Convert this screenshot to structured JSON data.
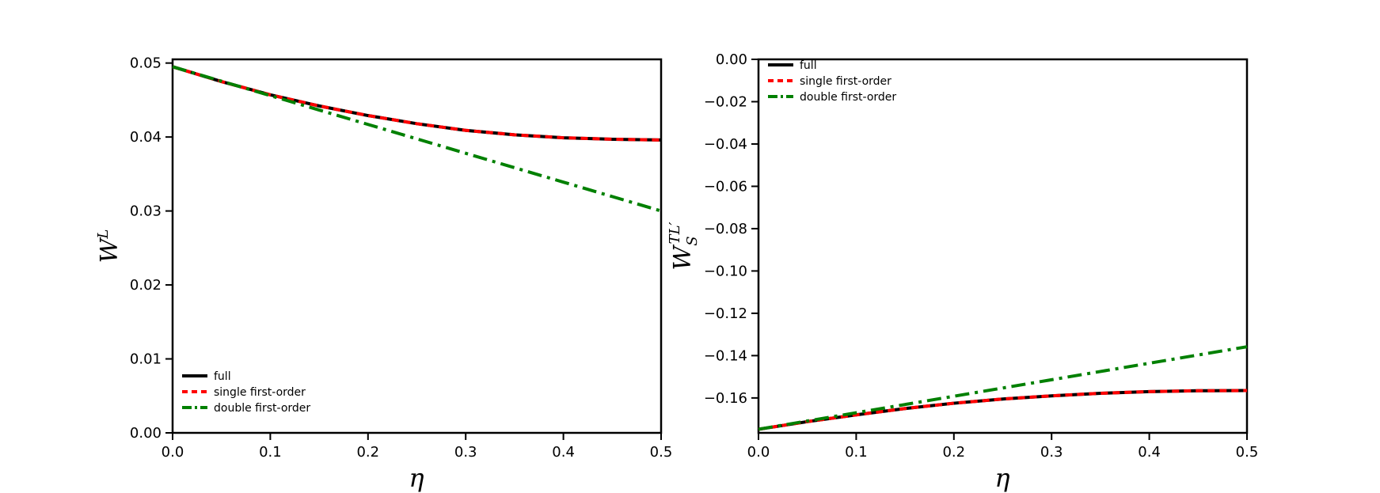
{
  "chart_data": [
    {
      "type": "line",
      "xlabel": "η",
      "ylabel_base": "W",
      "ylabel_sup": "L",
      "ylabel_sub": "",
      "xlim": [
        0.0,
        0.5
      ],
      "ylim": [
        0.0,
        0.0505
      ],
      "xticks": [
        0.0,
        0.1,
        0.2,
        0.3,
        0.4,
        0.5
      ],
      "xtick_labels": [
        "0.0",
        "0.1",
        "0.2",
        "0.3",
        "0.4",
        "0.5"
      ],
      "yticks": [
        0.0,
        0.01,
        0.02,
        0.03,
        0.04,
        0.05
      ],
      "ytick_labels": [
        "0.00",
        "0.01",
        "0.02",
        "0.03",
        "0.04",
        "0.05"
      ],
      "grid": false,
      "legend_position": "lower-left",
      "x": [
        0.0,
        0.05,
        0.1,
        0.15,
        0.2,
        0.25,
        0.3,
        0.35,
        0.4,
        0.45,
        0.5
      ],
      "series": [
        {
          "name": "full",
          "color": "#000000",
          "style": "solid",
          "values": [
            0.0495,
            0.0475,
            0.0457,
            0.0442,
            0.0429,
            0.0418,
            0.0409,
            0.0403,
            0.0399,
            0.0397,
            0.0396
          ]
        },
        {
          "name": "single first-order",
          "color": "#ff0000",
          "style": "dashed",
          "values": [
            0.0495,
            0.0475,
            0.0457,
            0.0442,
            0.0429,
            0.0418,
            0.0409,
            0.0403,
            0.0399,
            0.0397,
            0.0396
          ]
        },
        {
          "name": "double first-order",
          "color": "#008000",
          "style": "dashdot",
          "values": [
            0.0495,
            0.04755,
            0.0456,
            0.04365,
            0.0417,
            0.03975,
            0.0378,
            0.03585,
            0.0339,
            0.03195,
            0.03
          ]
        }
      ]
    },
    {
      "type": "line",
      "xlabel": "η",
      "ylabel_base": "W",
      "ylabel_sup": "TL′",
      "ylabel_sub": "S",
      "xlim": [
        0.0,
        0.5
      ],
      "ylim": [
        -0.1765,
        0.0
      ],
      "xticks": [
        0.0,
        0.1,
        0.2,
        0.3,
        0.4,
        0.5
      ],
      "xtick_labels": [
        "0.0",
        "0.1",
        "0.2",
        "0.3",
        "0.4",
        "0.5"
      ],
      "yticks": [
        0.0,
        -0.02,
        -0.04,
        -0.06,
        -0.08,
        -0.1,
        -0.12,
        -0.14,
        -0.16
      ],
      "ytick_labels": [
        "0.00",
        "−0.02",
        "−0.04",
        "−0.06",
        "−0.08",
        "−0.10",
        "−0.12",
        "−0.14",
        "−0.16"
      ],
      "grid": false,
      "legend_position": "upper-left",
      "x": [
        0.0,
        0.05,
        0.1,
        0.15,
        0.2,
        0.25,
        0.3,
        0.35,
        0.4,
        0.45,
        0.5
      ],
      "series": [
        {
          "name": "full",
          "color": "#000000",
          "style": "solid",
          "values": [
            -0.1748,
            -0.1712,
            -0.168,
            -0.165,
            -0.1625,
            -0.1605,
            -0.159,
            -0.1578,
            -0.157,
            -0.1566,
            -0.1565
          ]
        },
        {
          "name": "single first-order",
          "color": "#ff0000",
          "style": "dashed",
          "values": [
            -0.1748,
            -0.1712,
            -0.168,
            -0.165,
            -0.1625,
            -0.1605,
            -0.159,
            -0.1578,
            -0.157,
            -0.1566,
            -0.1565
          ]
        },
        {
          "name": "double first-order",
          "color": "#008000",
          "style": "dashdot",
          "values": [
            -0.1748,
            -0.1709,
            -0.167,
            -0.1631,
            -0.1592,
            -0.1553,
            -0.1514,
            -0.1475,
            -0.1436,
            -0.1397,
            -0.1358
          ]
        }
      ]
    }
  ]
}
